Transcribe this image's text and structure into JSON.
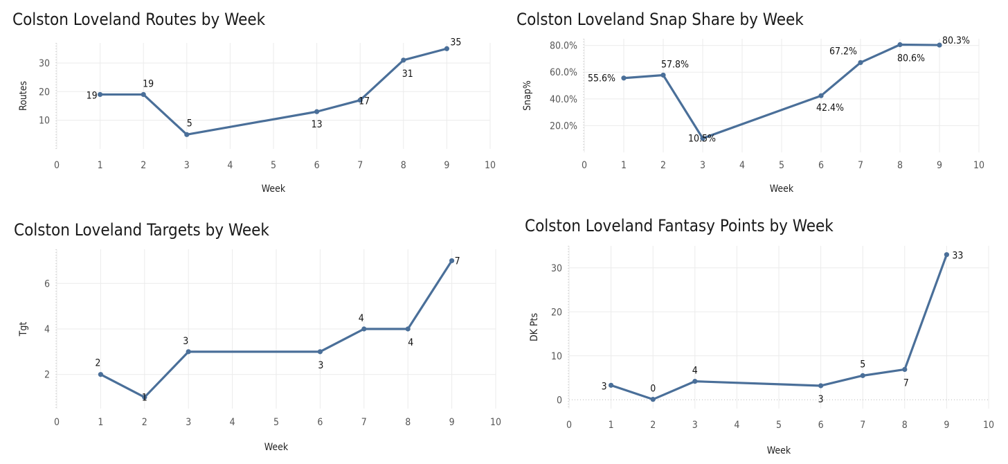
{
  "colors": {
    "series": "#4a6f99"
  },
  "chart_data": [
    {
      "type": "line",
      "title": "Colston Loveland Routes by Week",
      "xlabel": "Week",
      "ylabel": "Routes",
      "xlim": [
        0,
        10
      ],
      "ylim": [
        0,
        37
      ],
      "xticks": [
        "0",
        "1",
        "2",
        "3",
        "4",
        "5",
        "6",
        "7",
        "8",
        "9",
        "10"
      ],
      "yticks": [
        "10",
        "20",
        "30"
      ],
      "x": [
        1,
        2,
        3,
        6,
        7,
        8,
        9
      ],
      "values": [
        19,
        19,
        5,
        13,
        17,
        31,
        35
      ],
      "labels": [
        "19",
        "19",
        "5",
        "13",
        "17",
        "31",
        "35"
      ]
    },
    {
      "type": "line",
      "title": "Colston Loveland Snap Share by Week",
      "xlabel": "Week",
      "ylabel": "Snap%",
      "xlim": [
        0,
        10
      ],
      "ylim": [
        0,
        85
      ],
      "xticks": [
        "0",
        "1",
        "2",
        "3",
        "4",
        "5",
        "6",
        "7",
        "8",
        "9",
        "10"
      ],
      "yticks": [
        "20.0%",
        "40.0%",
        "60.0%",
        "80.0%"
      ],
      "x": [
        1,
        2,
        3,
        6,
        7,
        8,
        9
      ],
      "values": [
        55.6,
        57.8,
        10.5,
        42.4,
        67.2,
        80.6,
        80.3
      ],
      "labels": [
        "55.6%",
        "57.8%",
        "10.5%",
        "42.4%",
        "67.2%",
        "80.6%",
        "80.3%"
      ]
    },
    {
      "type": "line",
      "title": "Colston Loveland Targets by Week",
      "xlabel": "Week",
      "ylabel": "Tgt",
      "xlim": [
        0,
        10
      ],
      "ylim": [
        0.5,
        7.5
      ],
      "xticks": [
        "0",
        "1",
        "2",
        "3",
        "4",
        "5",
        "6",
        "7",
        "8",
        "9",
        "10"
      ],
      "yticks": [
        "2",
        "4",
        "6"
      ],
      "x": [
        1,
        2,
        3,
        6,
        7,
        8,
        9
      ],
      "values": [
        2,
        1,
        3,
        3,
        4,
        4,
        7
      ],
      "labels": [
        "2",
        "1",
        "3",
        "3",
        "4",
        "4",
        "7"
      ]
    },
    {
      "type": "line",
      "title": "Colston Loveland Fantasy Points by Week",
      "xlabel": "Week",
      "ylabel": "DK Pts",
      "xlim": [
        0,
        10
      ],
      "ylim": [
        -2,
        35
      ],
      "xticks": [
        "0",
        "1",
        "2",
        "3",
        "4",
        "5",
        "6",
        "7",
        "8",
        "9",
        "10"
      ],
      "yticks": [
        "0",
        "10",
        "20",
        "30"
      ],
      "x": [
        1,
        2,
        3,
        6,
        7,
        8,
        9
      ],
      "values": [
        3.3,
        0.1,
        4.2,
        3.2,
        5.5,
        6.9,
        33
      ],
      "labels": [
        "3",
        "0",
        "4",
        "3",
        "5",
        "7",
        "33"
      ]
    }
  ]
}
